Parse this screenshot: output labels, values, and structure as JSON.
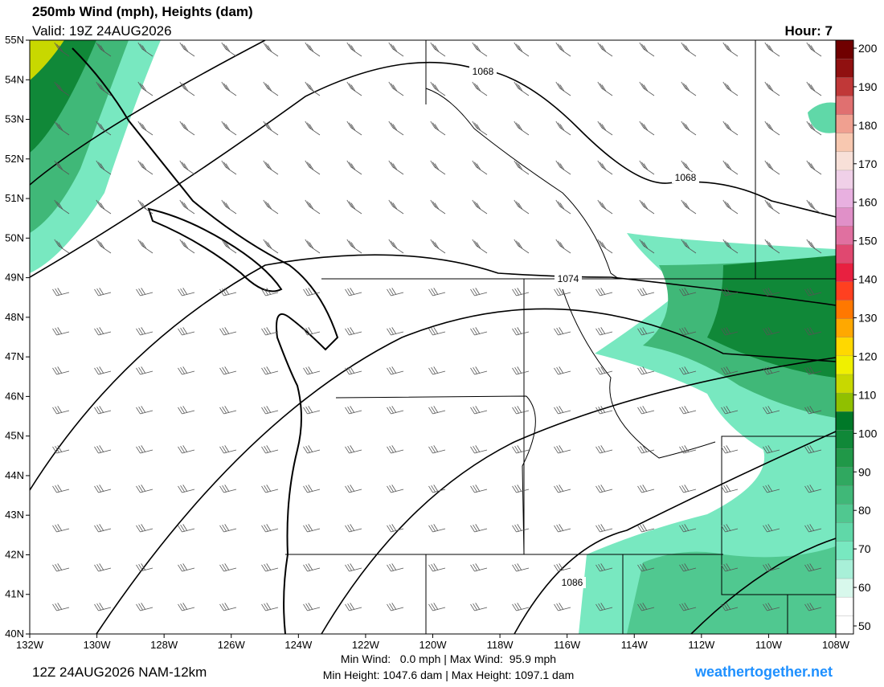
{
  "header": {
    "title": "250mb Wind (mph), Heights (dam)",
    "valid": "Valid: 19Z 24AUG2026",
    "hour": "Hour: 7"
  },
  "map": {
    "lat_labels": [
      "55N",
      "54N",
      "53N",
      "52N",
      "51N",
      "50N",
      "49N",
      "48N",
      "47N",
      "46N",
      "45N",
      "44N",
      "43N",
      "42N",
      "41N",
      "40N"
    ],
    "lon_labels": [
      "132W",
      "130W",
      "128W",
      "126W",
      "124W",
      "122W",
      "120W",
      "118W",
      "116W",
      "114W",
      "112W",
      "110W",
      "108W"
    ],
    "contour_labels": [
      "1068",
      "1068",
      "1074",
      "1086"
    ]
  },
  "colorbar": {
    "ticks": [
      200,
      190,
      180,
      170,
      160,
      150,
      140,
      130,
      120,
      110,
      100,
      90,
      80,
      70,
      60,
      50
    ],
    "colors": [
      "#ffffff",
      "#ffffff",
      "#d8f8ec",
      "#a8f0d8",
      "#78e8c0",
      "#60d8a8",
      "#50c890",
      "#40b878",
      "#30a860",
      "#209848",
      "#108838",
      "#007828",
      "#90c000",
      "#c8d800",
      "#f0f000",
      "#ffd800",
      "#ffa800",
      "#ff7800",
      "#ff4020",
      "#e82040",
      "#e04870",
      "#e070a0",
      "#e090c8",
      "#e8b0e0",
      "#f0d0e8",
      "#f8e0d8",
      "#f8c8b0",
      "#f0a090",
      "#e07070",
      "#c03838",
      "#901010",
      "#700000"
    ]
  },
  "footer": {
    "run": "12Z 24AUG2026 NAM-12km",
    "wind": "Min Wind:   0.0 mph | Max Wind:  95.9 mph",
    "height": "Min Height: 1047.6 dam | Max Height: 1097.1 dam",
    "site": "weathertogether.net"
  }
}
